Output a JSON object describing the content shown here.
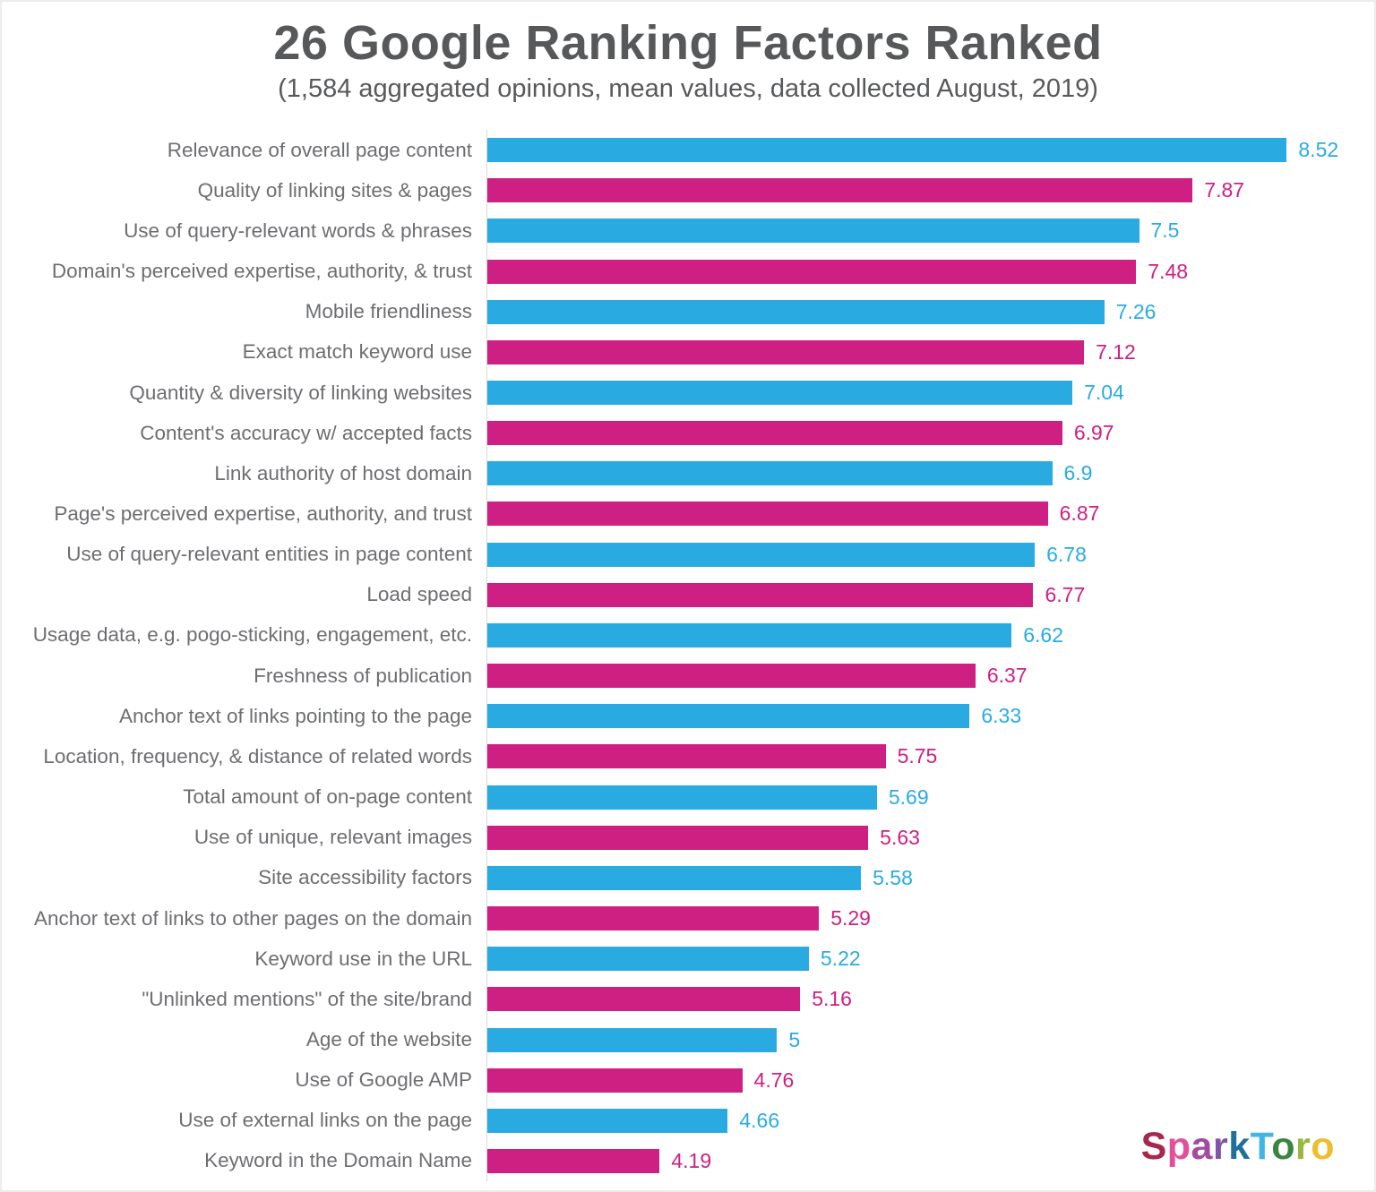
{
  "chart_data": {
    "type": "bar",
    "orientation": "horizontal",
    "title": "26 Google Ranking Factors Ranked",
    "subtitle": "(1,584 aggregated opinions, mean values, data collected August, 2019)",
    "categories": [
      "Relevance of overall page content",
      "Quality of linking sites & pages",
      "Use of query-relevant words & phrases",
      "Domain's perceived expertise, authority, & trust",
      "Mobile friendliness",
      "Exact match keyword use",
      "Quantity & diversity of linking websites",
      "Content's accuracy w/ accepted facts",
      "Link authority of host domain",
      "Page's perceived expertise, authority, and trust",
      "Use of query-relevant entities in page content",
      "Load speed",
      "Usage data, e.g. pogo-sticking, engagement, etc.",
      "Freshness of publication",
      "Anchor text of links pointing to the page",
      "Location, frequency, & distance of related words",
      "Total amount of on-page content",
      "Use of unique, relevant images",
      "Site accessibility factors",
      "Anchor text of links to other pages on the domain",
      "Keyword use in the URL",
      "\"Unlinked mentions\" of the site/brand",
      "Age of the website",
      "Use of Google AMP",
      "Use of external links on the page",
      "Keyword in the Domain Name"
    ],
    "values": [
      8.52,
      7.87,
      7.5,
      7.48,
      7.26,
      7.12,
      7.04,
      6.97,
      6.9,
      6.87,
      6.78,
      6.77,
      6.62,
      6.37,
      6.33,
      5.75,
      5.69,
      5.63,
      5.58,
      5.29,
      5.22,
      5.16,
      5,
      4.76,
      4.66,
      4.19
    ],
    "value_labels": [
      "8.52",
      "7.87",
      "7.5",
      "7.48",
      "7.26",
      "7.12",
      "7.04",
      "6.97",
      "6.9",
      "6.87",
      "6.78",
      "6.77",
      "6.62",
      "6.37",
      "6.33",
      "5.75",
      "5.69",
      "5.63",
      "5.58",
      "5.29",
      "5.22",
      "5.16",
      "5",
      "4.76",
      "4.66",
      "4.19"
    ],
    "axis": {
      "min": 3,
      "max": 9,
      "gridlines": false
    },
    "legend": null,
    "colors": {
      "blue": "#29abe2",
      "pink": "#ce1f82"
    }
  },
  "logo": {
    "text": "SparkToro",
    "letters": [
      {
        "ch": "S",
        "color": "#a8274b"
      },
      {
        "ch": "p",
        "color": "#e1519b"
      },
      {
        "ch": "a",
        "color": "#a14c9e"
      },
      {
        "ch": "r",
        "color": "#7e57a6"
      },
      {
        "ch": "k",
        "color": "#20709b"
      },
      {
        "ch": "T",
        "color": "#41b5e6"
      },
      {
        "ch": "o",
        "color": "#3a8540"
      },
      {
        "ch": "r",
        "color": "#97b93c"
      },
      {
        "ch": "o",
        "color": "#efbe2f"
      }
    ]
  }
}
